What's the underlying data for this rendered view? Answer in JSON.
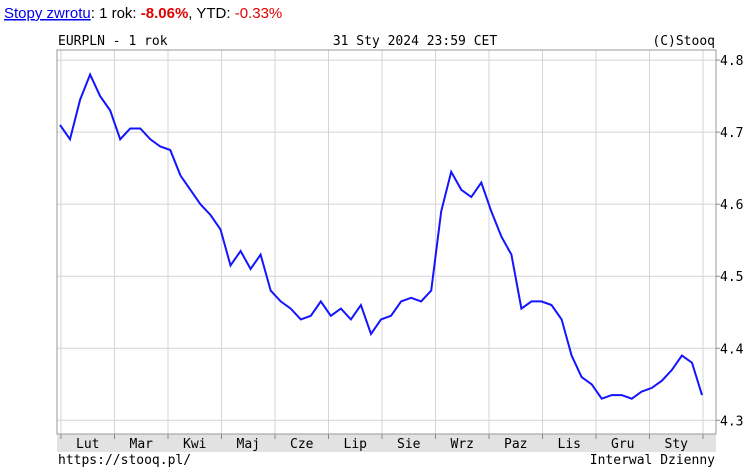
{
  "returns": {
    "label": "Stopy zwrotu",
    "period": "1 rok",
    "period_value": "-8.06%",
    "ytd": "YTD",
    "ytd_value": "-0.33%"
  },
  "chart_data": {
    "type": "line",
    "title": "EURPLN - 1 rok",
    "date": "31 Sty 2024 23:59 CET",
    "copyright": "(C)Stooq",
    "source": "https://stooq.pl/",
    "interval": "Interwal Dzienny",
    "x_labels": [
      "Lut",
      "Mar",
      "Kwi",
      "Maj",
      "Cze",
      "Lip",
      "Sie",
      "Wrz",
      "Paz",
      "Lis",
      "Gru",
      "Sty"
    ],
    "ylim": [
      4.281,
      4.814
    ],
    "yticks": [
      4.3,
      4.4,
      4.5,
      4.6,
      4.7,
      4.8
    ],
    "grid": true,
    "series": [
      {
        "name": "EURPLN",
        "color": "#1414ff",
        "values": [
          4.71,
          4.69,
          4.745,
          4.78,
          4.75,
          4.73,
          4.69,
          4.705,
          4.705,
          4.69,
          4.68,
          4.675,
          4.64,
          4.62,
          4.6,
          4.585,
          4.565,
          4.515,
          4.535,
          4.51,
          4.53,
          4.48,
          4.465,
          4.455,
          4.44,
          4.445,
          4.465,
          4.445,
          4.455,
          4.44,
          4.46,
          4.42,
          4.44,
          4.445,
          4.465,
          4.47,
          4.465,
          4.48,
          4.59,
          4.645,
          4.62,
          4.61,
          4.63,
          4.59,
          4.555,
          4.53,
          4.455,
          4.465,
          4.465,
          4.46,
          4.44,
          4.39,
          4.36,
          4.35,
          4.33,
          4.335,
          4.335,
          4.33,
          4.34,
          4.345,
          4.355,
          4.37,
          4.39,
          4.38,
          4.335
        ]
      }
    ]
  }
}
